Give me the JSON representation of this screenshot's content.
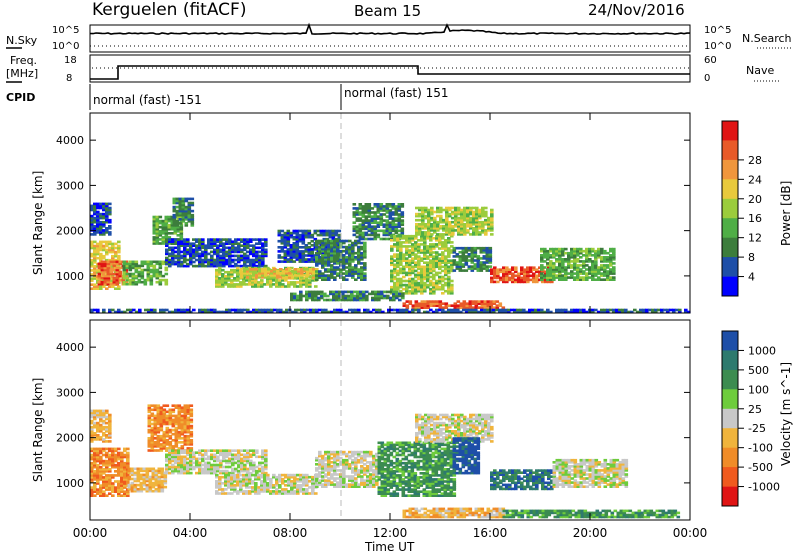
{
  "header": {
    "station": "Kerguelen (fitACF)",
    "beam": "Beam 15",
    "date": "24/Nov/2016"
  },
  "noise_panel": {
    "left_label": "N.Sky",
    "left_ticks": [
      "10^5",
      "10^0"
    ],
    "right_label": "N.Search",
    "right_ticks": [
      "10^5",
      "10^0"
    ]
  },
  "freq_panel": {
    "left_label_line1": "Freq.",
    "left_label_line2": "[MHz]",
    "left_ticks": [
      "18",
      "8"
    ],
    "right_label": "Nave",
    "right_ticks": [
      "60",
      "0"
    ]
  },
  "cpid": {
    "label": "CPID",
    "segments": [
      "normal (fast) -151",
      "normal (fast) 151"
    ]
  },
  "chart_data": [
    {
      "type": "heatmap",
      "panel": "power",
      "ylabel": "Slant Range [km]",
      "xlabel": "Time UT",
      "xlim": [
        "00:00",
        "24:00"
      ],
      "ylim": [
        180,
        4600
      ],
      "y_ticks": [
        "1000",
        "2000",
        "3000",
        "4000"
      ],
      "x_ticks": [
        "00:00",
        "04:00",
        "08:00",
        "12:00",
        "16:00",
        "20:00",
        "00:00"
      ],
      "colorbar_label": "Power [dB]",
      "colorbar_ticks": [
        "4",
        "8",
        "12",
        "16",
        "20",
        "24",
        "28"
      ],
      "colors": [
        "#0000ff",
        "#1e4fa8",
        "#3c7d3c",
        "#4fae46",
        "#9bcc3c",
        "#e8c93c",
        "#f0963c",
        "#e85a28",
        "#e01414"
      ],
      "regions": [
        {
          "t0": 0.0,
          "t1": 1.2,
          "r0": 700,
          "r1": 1750,
          "level": 20
        },
        {
          "t0": 0.3,
          "t1": 1.5,
          "r0": 800,
          "r1": 1300,
          "level": 26
        },
        {
          "t0": 0.0,
          "t1": 0.8,
          "r0": 1900,
          "r1": 2600,
          "level": 8
        },
        {
          "t0": 1.3,
          "t1": 3.0,
          "r0": 800,
          "r1": 1300,
          "level": 14
        },
        {
          "t0": 2.5,
          "t1": 3.6,
          "r0": 1700,
          "r1": 2300,
          "level": 14
        },
        {
          "t0": 3.3,
          "t1": 4.1,
          "r0": 2100,
          "r1": 2700,
          "level": 12
        },
        {
          "t0": 3.0,
          "t1": 7.0,
          "r0": 1200,
          "r1": 1800,
          "level": 6
        },
        {
          "t0": 5.0,
          "t1": 9.0,
          "r0": 750,
          "r1": 1200,
          "level": 18
        },
        {
          "t0": 6.0,
          "t1": 9.0,
          "r0": 950,
          "r1": 1150,
          "level": 22
        },
        {
          "t0": 7.5,
          "t1": 10.0,
          "r0": 1300,
          "r1": 2000,
          "level": 6
        },
        {
          "t0": 9.0,
          "t1": 11.0,
          "r0": 900,
          "r1": 1800,
          "level": 12
        },
        {
          "t0": 10.5,
          "t1": 12.5,
          "r0": 1800,
          "r1": 2600,
          "level": 10
        },
        {
          "t0": 12.0,
          "t1": 14.5,
          "r0": 600,
          "r1": 1900,
          "level": 16
        },
        {
          "t0": 13.0,
          "t1": 16.0,
          "r0": 1900,
          "r1": 2500,
          "level": 16
        },
        {
          "t0": 14.5,
          "t1": 16.0,
          "r0": 1100,
          "r1": 1600,
          "level": 12
        },
        {
          "t0": 16.0,
          "t1": 18.5,
          "r0": 850,
          "r1": 1200,
          "level": 29
        },
        {
          "t0": 18.0,
          "t1": 21.0,
          "r0": 900,
          "r1": 1600,
          "level": 14
        },
        {
          "t0": 12.5,
          "t1": 16.5,
          "r0": 280,
          "r1": 450,
          "level": 26
        },
        {
          "t0": 8.0,
          "t1": 12.5,
          "r0": 450,
          "r1": 650,
          "level": 10
        },
        {
          "t0": 0.0,
          "t1": 24.0,
          "r0": 185,
          "r1": 260,
          "level": 6
        }
      ]
    },
    {
      "type": "heatmap",
      "panel": "velocity",
      "ylabel": "Slant Range [km]",
      "xlabel": "Time UT",
      "xlim": [
        "00:00",
        "24:00"
      ],
      "ylim": [
        180,
        4600
      ],
      "y_ticks": [
        "1000",
        "2000",
        "3000",
        "4000"
      ],
      "x_ticks": [
        "00:00",
        "04:00",
        "08:00",
        "12:00",
        "16:00",
        "20:00",
        "00:00"
      ],
      "colorbar_label": "Velocity [m s^-1]",
      "colorbar_ticks": [
        "1000",
        "500",
        "100",
        "25",
        "-25",
        "-100",
        "-500",
        "-1000"
      ],
      "colors": [
        "#1e4fa8",
        "#2d7a6e",
        "#3c8c50",
        "#6ecc3c",
        "#c8c8c8",
        "#f0b43c",
        "#f08c28",
        "#f05a1e",
        "#e01414"
      ],
      "regions": [
        {
          "t0": 0.0,
          "t1": 1.5,
          "r0": 700,
          "r1": 1750,
          "level": -500
        },
        {
          "t0": 0.0,
          "t1": 0.8,
          "r0": 1900,
          "r1": 2600,
          "level": -100
        },
        {
          "t0": 1.5,
          "t1": 3.0,
          "r0": 800,
          "r1": 1300,
          "level": -100
        },
        {
          "t0": 2.3,
          "t1": 4.0,
          "r0": 1700,
          "r1": 2700,
          "level": -500
        },
        {
          "t0": 3.0,
          "t1": 7.0,
          "r0": 1200,
          "r1": 1700,
          "level": 0
        },
        {
          "t0": 5.0,
          "t1": 9.0,
          "r0": 750,
          "r1": 1200,
          "level": 0
        },
        {
          "t0": 9.0,
          "t1": 11.5,
          "r0": 900,
          "r1": 1700,
          "level": 0
        },
        {
          "t0": 11.5,
          "t1": 14.5,
          "r0": 700,
          "r1": 1900,
          "level": 100
        },
        {
          "t0": 13.0,
          "t1": 16.0,
          "r0": 1900,
          "r1": 2500,
          "level": 0
        },
        {
          "t0": 14.5,
          "t1": 15.5,
          "r0": 1200,
          "r1": 2000,
          "level": 1000
        },
        {
          "t0": 16.0,
          "t1": 18.5,
          "r0": 850,
          "r1": 1300,
          "level": 500
        },
        {
          "t0": 18.5,
          "t1": 21.5,
          "r0": 900,
          "r1": 1500,
          "level": 0
        },
        {
          "t0": 12.5,
          "t1": 16.5,
          "r0": 230,
          "r1": 420,
          "level": -100
        },
        {
          "t0": 16.5,
          "t1": 23.5,
          "r0": 230,
          "r1": 400,
          "level": 100
        }
      ]
    }
  ]
}
